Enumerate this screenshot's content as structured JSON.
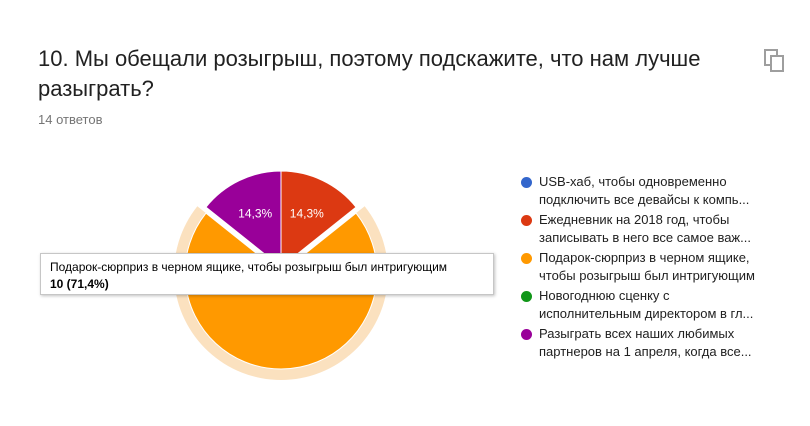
{
  "question": {
    "title": "10. Мы обещали розыгрыш, поэтому подскажите, что нам лучше разыграть?",
    "responses": "14 ответов"
  },
  "icons": {
    "copy": "copy-icon"
  },
  "tooltip": {
    "label": "Подарок-сюрприз в черном ящике, чтобы розыгрыш был интригующим",
    "value": "10 (71,4%)"
  },
  "chart_data": {
    "type": "pie",
    "title": "",
    "series": [
      {
        "name_lines": [
          "USB-хаб, чтобы одновременно",
          "подключить все девайсы к компь..."
        ],
        "value": 0,
        "color": "#3366cc"
      },
      {
        "name_lines": [
          "Ежедневник на 2018 год, чтобы",
          "записывать в него все самое важ..."
        ],
        "value": 2,
        "color": "#dc3912",
        "label": "14,3%"
      },
      {
        "name_lines": [
          "Подарок-сюрприз в черном ящике,",
          "чтобы розыгрыш был интригующим"
        ],
        "value": 10,
        "color": "#ff9900",
        "label": "71,4%"
      },
      {
        "name_lines": [
          "Новогоднюю сценку с",
          "исполнительным директором в гл..."
        ],
        "value": 0,
        "color": "#109618"
      },
      {
        "name_lines": [
          "Разыграть всех наших любимых",
          "партнеров на 1 апреля, когда все..."
        ],
        "value": 2,
        "color": "#990099",
        "label": "14,3%"
      }
    ],
    "highlighted": 2,
    "legend_position": "right"
  }
}
